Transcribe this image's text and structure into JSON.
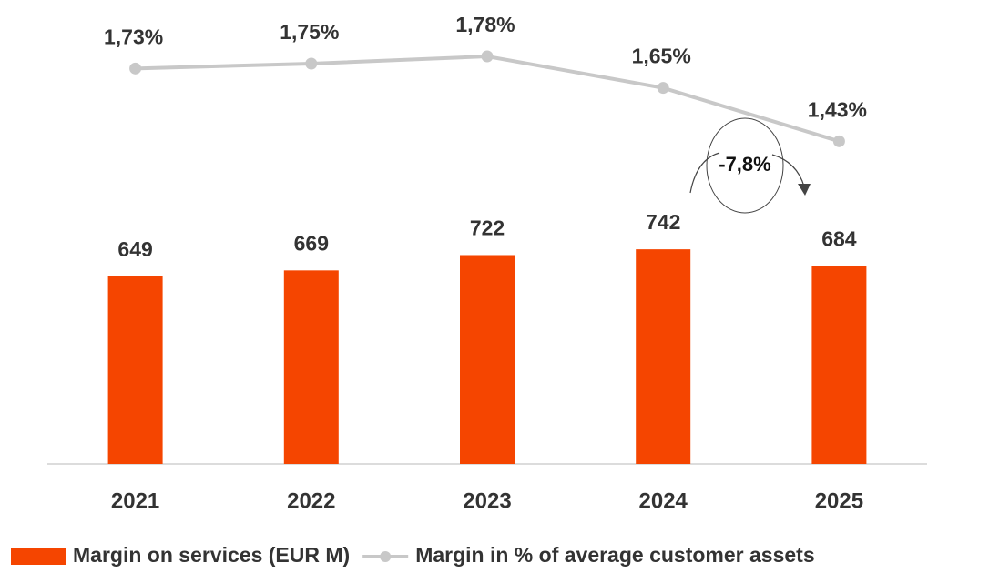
{
  "chart_data": {
    "type": "bar",
    "categories": [
      "2021",
      "2022",
      "2023",
      "2024",
      "2025"
    ],
    "series": [
      {
        "name": "Margin on services (EUR M)",
        "color": "#f54500",
        "values": [
          649,
          669,
          722,
          742,
          684
        ]
      },
      {
        "name": "Margin in % of average customer assets",
        "type": "line",
        "axis": "y2",
        "color": "#c8c8c8",
        "values": [
          1.73,
          1.75,
          1.78,
          1.65,
          1.43
        ],
        "value_labels": [
          "1,73%",
          "1,75%",
          "1,78%",
          "1,65%",
          "1,43%"
        ]
      }
    ],
    "ylim": [
      0,
      1510
    ],
    "y2lim": [
      0.1,
      1.9
    ],
    "annotation": "-7,8%",
    "legend": "bottom"
  }
}
